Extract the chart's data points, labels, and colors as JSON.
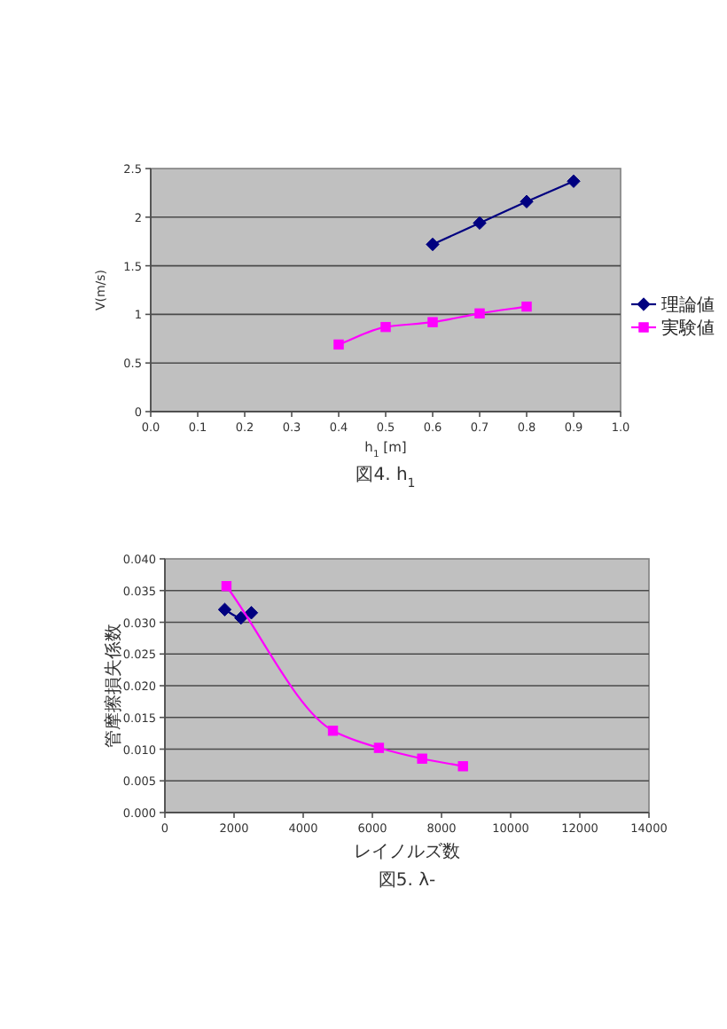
{
  "chart_data": [
    {
      "type": "line",
      "ylabel": "V(m/s)",
      "xlabel": "h$_{1}$ [m]",
      "annotations": [
        "図4. h$_{1}$"
      ],
      "xlim": [
        0,
        1
      ],
      "xticks": [
        {
          "value": 0,
          "label": "0.0"
        },
        0.1,
        0.2,
        0.3,
        0.4,
        0.5,
        0.6,
        0.7,
        0.8,
        0.9,
        {
          "value": 1,
          "label": "1.0"
        }
      ],
      "ylim": [
        0,
        2.5
      ],
      "yticks": [
        0,
        0.5,
        1,
        1.5,
        2,
        2.5
      ],
      "grid": "y",
      "legend": "right",
      "series": [
        {
          "name": "理論値",
          "color": "#000080",
          "marker": "diamond",
          "x": [
            0.6,
            0.7,
            0.8,
            0.9
          ],
          "values": [
            1.72,
            1.94,
            2.16,
            2.37
          ]
        },
        {
          "name": "実験値",
          "color": "#ff00ff",
          "marker": "square",
          "x": [
            0.4,
            0.5,
            0.6,
            0.7,
            0.8
          ],
          "values": [
            0.69,
            0.87,
            0.92,
            1.01,
            1.08
          ]
        }
      ]
    },
    {
      "type": "line",
      "ylabel": "管摩擦損失係数",
      "xlabel": "レイノルズ数",
      "annotations": [
        "図5. λ-"
      ],
      "xlim": [
        0,
        14000
      ],
      "xticks": [
        0,
        2000,
        4000,
        6000,
        8000,
        10000,
        12000,
        14000
      ],
      "ylim": [
        0,
        0.04
      ],
      "yticks": [
        {
          "value": 0,
          "label": "0.000"
        },
        0.005,
        {
          "value": 0.01,
          "label": "0.010"
        },
        0.015,
        {
          "value": 0.02,
          "label": "0.020"
        },
        0.025,
        {
          "value": 0.03,
          "label": "0.030"
        },
        0.035,
        {
          "value": 0.04,
          "label": "0.040"
        }
      ],
      "grid": "y",
      "series": [
        {
          "color": "#000080",
          "marker": "diamond",
          "x": [
            1730,
            2200,
            2500
          ],
          "values": [
            0.032,
            0.0307,
            0.0315
          ]
        },
        {
          "color": "#ff00ff",
          "marker": "square",
          "x": [
            1780,
            4860,
            6190,
            7440,
            8620
          ],
          "values": [
            0.0357,
            0.0129,
            0.0102,
            0.0085,
            0.0073
          ]
        }
      ]
    }
  ]
}
